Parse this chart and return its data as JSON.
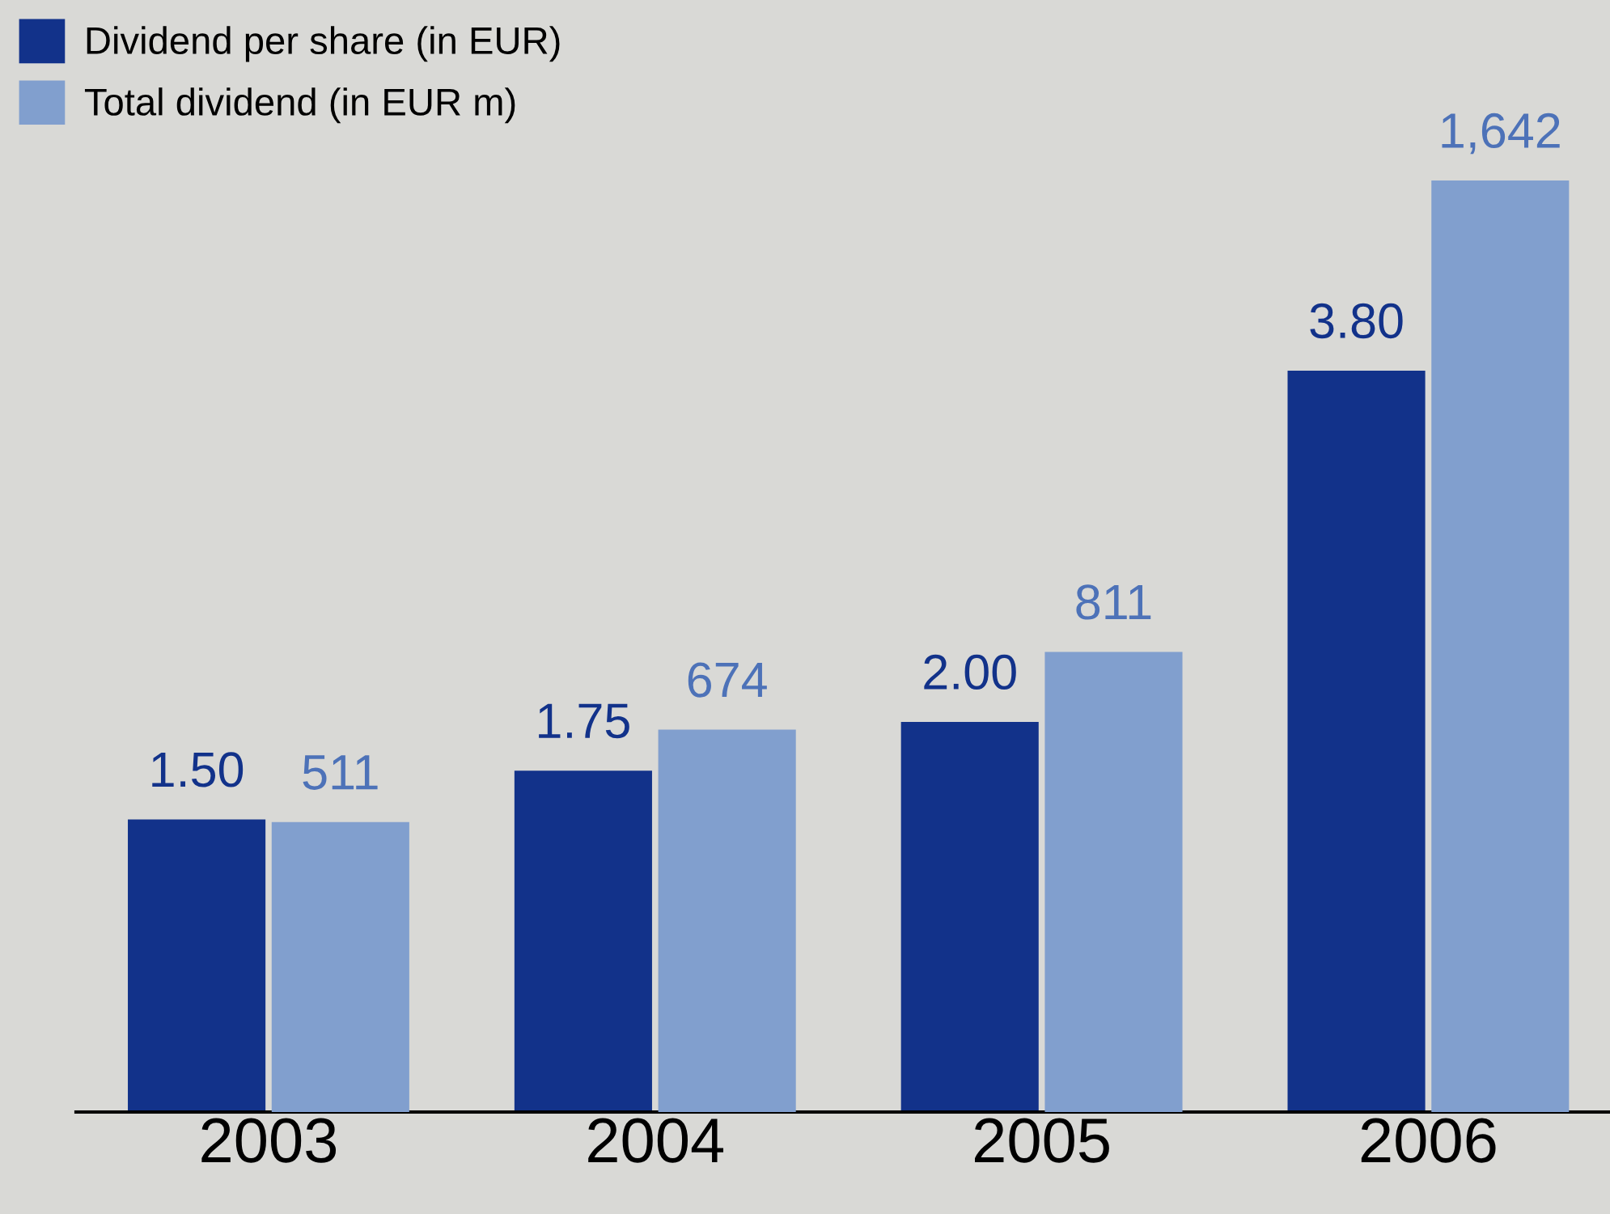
{
  "chart_data": {
    "type": "bar",
    "categories": [
      "2003",
      "2004",
      "2005",
      "2006"
    ],
    "series": [
      {
        "name": "Dividend per share (in EUR)",
        "color": "#12328a",
        "values": [
          1.5,
          1.75,
          2.0,
          3.8
        ],
        "value_labels": [
          "1.50",
          "1.75",
          "2.00",
          "3.80"
        ]
      },
      {
        "name": "Total dividend (in EUR m)",
        "color": "#819fce",
        "values": [
          511,
          674,
          811,
          1642
        ],
        "axis": "y2",
        "value_labels": [
          "511",
          "674",
          "811",
          "1,642"
        ]
      }
    ],
    "ylim": [
      0,
      5.7
    ],
    "y2lim": [
      0,
      1960
    ],
    "tick_labels": "x",
    "legend": "top left",
    "grid": false
  }
}
